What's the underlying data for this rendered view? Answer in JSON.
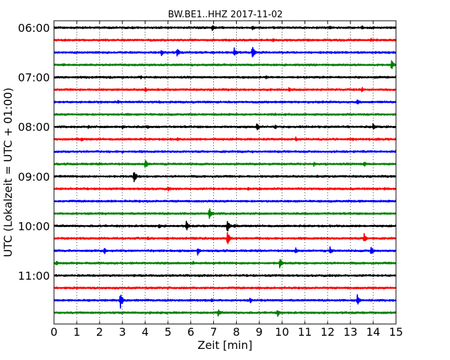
{
  "chart_data": {
    "type": "line",
    "chart_kind": "seismogram dayplot",
    "title": "BW.BE1..HHZ 2017-11-02",
    "xlabel": "Zeit  [min]",
    "ylabel": "UTC (Lokalzeit = UTC + 01:00)",
    "xlim": [
      0,
      15
    ],
    "x_ticks": [
      "0",
      "1",
      "2",
      "3",
      "4",
      "5",
      "6",
      "7",
      "8",
      "9",
      "10",
      "11",
      "12",
      "13",
      "14",
      "15"
    ],
    "y_tick_labels": [
      "06:00",
      "07:00",
      "08:00",
      "09:00",
      "10:00",
      "11:00"
    ],
    "trace_interval_min": 15,
    "first_trace_start": "06:00",
    "color_cycle": [
      "#000000",
      "#ff0000",
      "#0000ff",
      "#008000"
    ],
    "grid": "vertical dotted lines at each minute",
    "events": [
      [
        [
          6.95,
          0.8
        ],
        [
          8.7,
          0.6
        ],
        [
          12.1,
          0.5
        ],
        [
          13.5,
          0.5
        ]
      ],
      [
        [
          9.6,
          0.4
        ],
        [
          13.9,
          0.4
        ]
      ],
      [
        [
          4.7,
          0.8
        ],
        [
          5.4,
          1.0
        ],
        [
          7.9,
          1.2
        ],
        [
          8.7,
          1.5
        ],
        [
          14.1,
          0.3
        ]
      ],
      [
        [
          0.4,
          0.3
        ],
        [
          14.8,
          1.1
        ]
      ],
      [
        [
          3.8,
          0.4
        ],
        [
          9.3,
          0.4
        ],
        [
          13.4,
          0.3
        ]
      ],
      [
        [
          2.0,
          0.3
        ],
        [
          4.0,
          0.6
        ],
        [
          10.3,
          0.5
        ],
        [
          13.5,
          0.6
        ]
      ],
      [
        [
          2.8,
          0.4
        ],
        [
          4.6,
          0.3
        ],
        [
          13.3,
          0.6
        ]
      ],
      [
        [
          3.2,
          0.3
        ],
        [
          9.7,
          0.3
        ]
      ],
      [
        [
          1.5,
          0.4
        ],
        [
          3.0,
          0.5
        ],
        [
          4.1,
          0.4
        ],
        [
          8.9,
          0.9
        ],
        [
          9.7,
          0.5
        ],
        [
          14.0,
          0.8
        ]
      ],
      [
        [
          1.2,
          0.5
        ],
        [
          5.4,
          0.4
        ],
        [
          10.6,
          0.5
        ],
        [
          13.1,
          0.4
        ]
      ],
      [
        [
          3.0,
          0.3
        ],
        [
          10.3,
          0.3
        ]
      ],
      [
        [
          4.0,
          1.2
        ],
        [
          11.4,
          0.5
        ],
        [
          11.9,
          0.3
        ],
        [
          13.6,
          0.6
        ]
      ],
      [
        [
          3.5,
          1.6
        ]
      ],
      [
        [
          5.0,
          0.5
        ],
        [
          8.5,
          0.4
        ],
        [
          14.5,
          0.4
        ]
      ],
      [
        [
          2.5,
          0.3
        ],
        [
          13.4,
          0.4
        ]
      ],
      [
        [
          6.8,
          1.5
        ]
      ],
      [
        [
          4.6,
          0.6
        ],
        [
          5.8,
          1.2
        ],
        [
          7.6,
          1.6
        ],
        [
          7.9,
          0.6
        ]
      ],
      [
        [
          4.1,
          0.5
        ],
        [
          7.6,
          1.6
        ],
        [
          13.6,
          1.1
        ]
      ],
      [
        [
          2.2,
          0.8
        ],
        [
          6.3,
          1.0
        ],
        [
          10.6,
          0.8
        ],
        [
          12.1,
          0.9
        ],
        [
          13.9,
          1.3
        ]
      ],
      [
        [
          0.1,
          0.6
        ],
        [
          6.1,
          0.5
        ],
        [
          9.9,
          1.2
        ]
      ],
      [],
      [],
      [
        [
          1.5,
          0.4
        ],
        [
          2.9,
          2.1
        ],
        [
          6.9,
          0.4
        ],
        [
          8.6,
          0.6
        ],
        [
          13.3,
          1.3
        ]
      ],
      [
        [
          4.2,
          0.3
        ],
        [
          7.2,
          0.8
        ],
        [
          9.8,
          0.9
        ]
      ]
    ],
    "noise_amplitude": 0.15,
    "y_unit": "trace index (each row = 15 min), event values = relative amplitude"
  }
}
